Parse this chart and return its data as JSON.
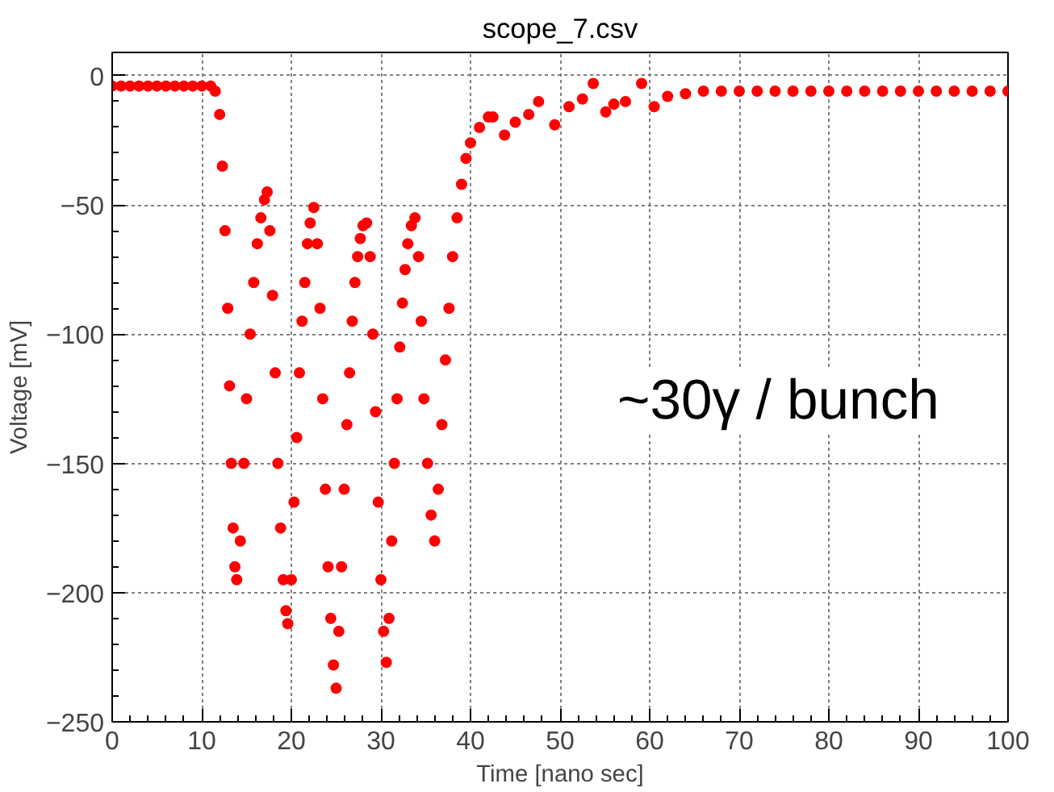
{
  "chart_data": {
    "type": "scatter",
    "title": "scope_7.csv",
    "xlabel": "Time [nano sec]",
    "ylabel": "Voltage [mV]",
    "annotations": [
      "~30γ / bunch"
    ],
    "xlim": [
      0,
      100
    ],
    "ylim": [
      -250,
      9
    ],
    "xticks": [
      0,
      10,
      20,
      30,
      40,
      50,
      60,
      70,
      80,
      90,
      100
    ],
    "yticks": [
      -250,
      -200,
      -150,
      -100,
      -50,
      0
    ],
    "grid": true,
    "marker": "circle",
    "series": [
      {
        "color": "#ff0000",
        "x": [
          0,
          1,
          2,
          3,
          4,
          5,
          6,
          7,
          8,
          9,
          10,
          11,
          11.5,
          12,
          12.3,
          12.6,
          12.9,
          13.1,
          13.3,
          13.5,
          13.7,
          13.9,
          14.3,
          14.7,
          15.0,
          15.4,
          15.8,
          16.2,
          16.6,
          17.0,
          17.3,
          17.6,
          17.9,
          18.2,
          18.5,
          18.8,
          19.1,
          19.4,
          19.6,
          20.0,
          20.3,
          20.6,
          20.9,
          21.2,
          21.5,
          21.8,
          22.1,
          22.5,
          22.9,
          23.2,
          23.5,
          23.8,
          24.1,
          24.4,
          24.7,
          25.0,
          25.3,
          25.6,
          25.9,
          26.2,
          26.5,
          26.8,
          27.1,
          27.4,
          27.7,
          28.0,
          28.4,
          28.8,
          29.1,
          29.4,
          29.7,
          30.0,
          30.3,
          30.6,
          30.9,
          31.2,
          31.5,
          31.8,
          32.1,
          32.4,
          32.7,
          33.0,
          33.4,
          33.8,
          34.2,
          34.5,
          34.8,
          35.2,
          35.6,
          36.0,
          36.4,
          36.8,
          37.2,
          37.6,
          38.0,
          38.5,
          39.0,
          39.5,
          40.0,
          41.0,
          42.0,
          42.5,
          43.8,
          45,
          46.5,
          47.6,
          49.4,
          51,
          52.5,
          53.7,
          55.1,
          56,
          57.3,
          59.1,
          60.5,
          62,
          64,
          66,
          68,
          70,
          72,
          74,
          76,
          78,
          80,
          82,
          84,
          86,
          88,
          90,
          92,
          94,
          96,
          98,
          100
        ],
        "values": [
          -4,
          -4,
          -4,
          -4,
          -4,
          -4,
          -4,
          -4,
          -4,
          -4,
          -4,
          -4,
          -6,
          -15,
          -35,
          -60,
          -90,
          -120,
          -150,
          -175,
          -190,
          -195,
          -180,
          -150,
          -125,
          -100,
          -80,
          -65,
          -55,
          -48,
          -45,
          -60,
          -85,
          -115,
          -150,
          -175,
          -195,
          -207,
          -212,
          -195,
          -165,
          -140,
          -115,
          -95,
          -80,
          -65,
          -57,
          -51,
          -65,
          -90,
          -125,
          -160,
          -190,
          -210,
          -228,
          -237,
          -215,
          -190,
          -160,
          -135,
          -115,
          -95,
          -80,
          -70,
          -63,
          -58,
          -57,
          -70,
          -100,
          -130,
          -165,
          -195,
          -215,
          -227,
          -210,
          -180,
          -150,
          -125,
          -105,
          -88,
          -75,
          -65,
          -58,
          -55,
          -70,
          -95,
          -125,
          -150,
          -170,
          -180,
          -160,
          -135,
          -110,
          -90,
          -70,
          -55,
          -42,
          -32,
          -26,
          -20,
          -16,
          -16,
          -23,
          -18,
          -15,
          -10,
          -19,
          -12,
          -9,
          -3,
          -14,
          -11,
          -10,
          -3,
          -12,
          -8,
          -7,
          -6,
          -6,
          -6,
          -6,
          -6,
          -6,
          -6,
          -6,
          -6,
          -6,
          -6,
          -6,
          -6,
          -6,
          -6,
          -6,
          -6,
          -6
        ]
      }
    ]
  }
}
